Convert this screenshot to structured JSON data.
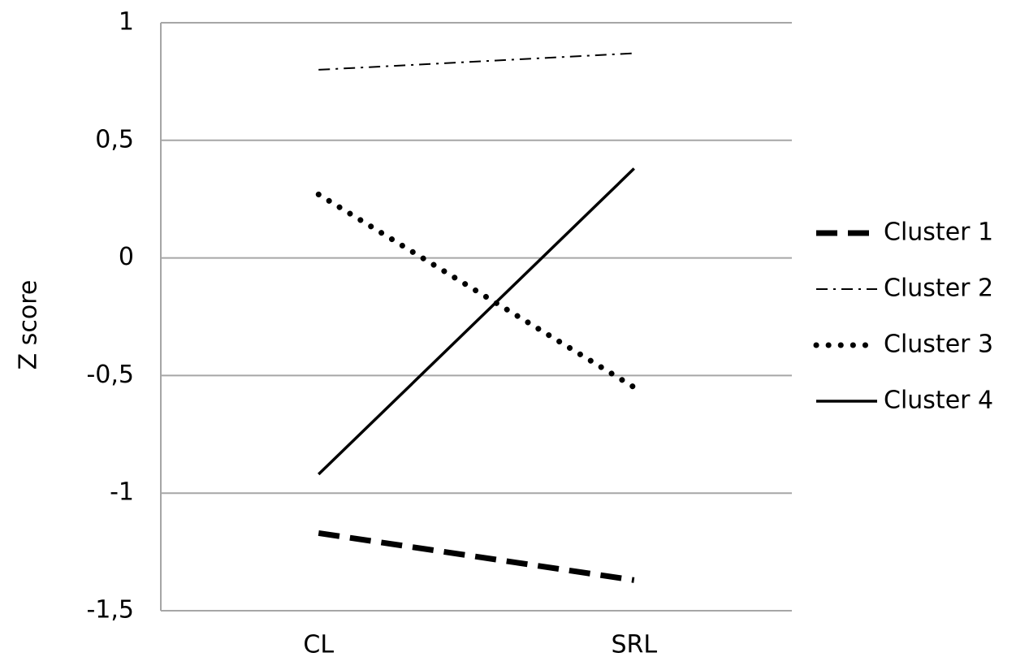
{
  "chart_data": {
    "type": "line",
    "y_label": "Z score",
    "categories": [
      "CL",
      "SRL"
    ],
    "series": [
      {
        "name": "Cluster 1",
        "color": "#000000",
        "line_style": "dashed",
        "values": [
          -1.17,
          -1.37
        ]
      },
      {
        "name": "Cluster 2",
        "color": "#000000",
        "line_style": "dashdot",
        "values": [
          0.8,
          0.87
        ]
      },
      {
        "name": "Cluster 3",
        "color": "#000000",
        "line_style": "dotted",
        "values": [
          0.27,
          -0.55
        ]
      },
      {
        "name": "Cluster 4",
        "color": "#000000",
        "line_style": "solid",
        "values": [
          -0.92,
          0.38
        ]
      }
    ],
    "ylim": [
      -1.5,
      1
    ],
    "yticks": [
      {
        "value": -1.5,
        "label": "-1,5"
      },
      -1,
      {
        "value": -0.5,
        "label": "-0,5"
      },
      0,
      {
        "value": 0.5,
        "label": "0,5"
      },
      1
    ],
    "grid": true,
    "legend": "right"
  }
}
